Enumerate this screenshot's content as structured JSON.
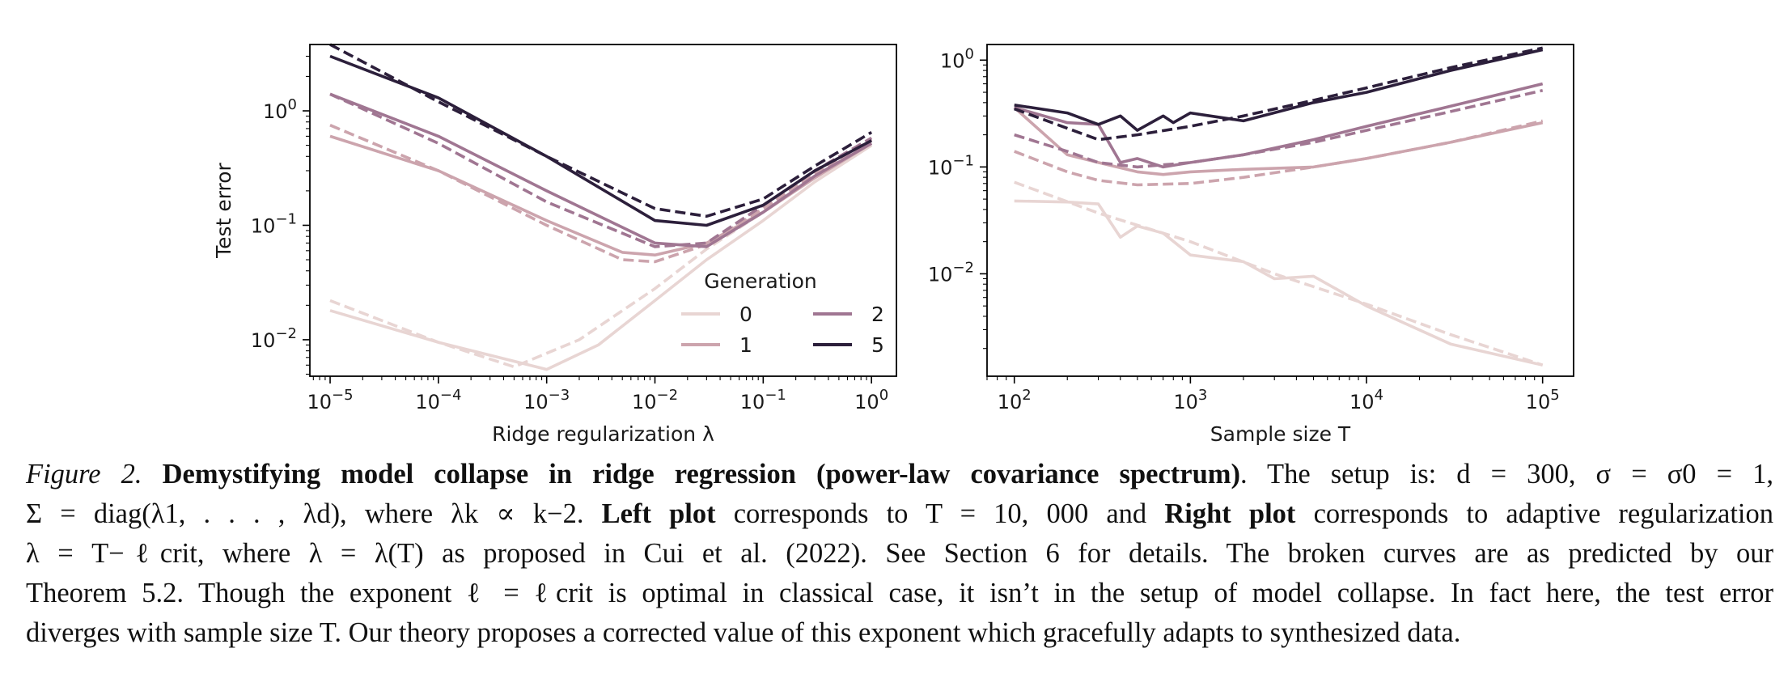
{
  "chart_data": [
    {
      "type": "line",
      "panel": "left",
      "xlabel": "Ridge regularization λ",
      "ylabel": "Test error",
      "xscale": "log",
      "yscale": "log",
      "xlim": [
        6.5e-06,
        1.7
      ],
      "ylim": [
        0.0048,
        3.8
      ],
      "xticks": [
        {
          "value": 1e-05,
          "base": "10",
          "exp": "−5"
        },
        {
          "value": 0.0001,
          "base": "10",
          "exp": "−4"
        },
        {
          "value": 0.001,
          "base": "10",
          "exp": "−3"
        },
        {
          "value": 0.01,
          "base": "10",
          "exp": "−2"
        },
        {
          "value": 0.1,
          "base": "10",
          "exp": "−1"
        },
        {
          "value": 1,
          "base": "10",
          "exp": "0"
        }
      ],
      "yticks": [
        {
          "value": 0.01,
          "base": "10",
          "exp": "−2"
        },
        {
          "value": 0.1,
          "base": "10",
          "exp": "−1"
        },
        {
          "value": 1,
          "base": "10",
          "exp": "0"
        }
      ],
      "series": [
        {
          "name": "0",
          "kind": "empirical",
          "x": [
            1e-05,
            0.0001,
            0.001,
            0.003,
            0.01,
            0.03,
            0.1,
            0.3,
            1
          ],
          "values": [
            0.018,
            0.0095,
            0.0055,
            0.009,
            0.022,
            0.05,
            0.11,
            0.24,
            0.5
          ]
        },
        {
          "name": "0",
          "kind": "theory",
          "x": [
            1e-05,
            0.0001,
            0.0005,
            0.002,
            0.01,
            0.03,
            0.1,
            0.3,
            1
          ],
          "values": [
            0.022,
            0.0095,
            0.0058,
            0.01,
            0.028,
            0.062,
            0.13,
            0.27,
            0.55
          ]
        },
        {
          "name": "1",
          "kind": "empirical",
          "x": [
            1e-05,
            0.0001,
            0.001,
            0.005,
            0.01,
            0.03,
            0.1,
            0.3,
            1
          ],
          "values": [
            0.6,
            0.3,
            0.11,
            0.058,
            0.055,
            0.07,
            0.13,
            0.26,
            0.52
          ]
        },
        {
          "name": "1",
          "kind": "theory",
          "x": [
            1e-05,
            0.0001,
            0.001,
            0.005,
            0.01,
            0.03,
            0.1,
            0.3,
            1
          ],
          "values": [
            0.75,
            0.3,
            0.1,
            0.05,
            0.048,
            0.068,
            0.14,
            0.28,
            0.56
          ]
        },
        {
          "name": "2",
          "kind": "empirical",
          "x": [
            1e-05,
            0.0001,
            0.001,
            0.01,
            0.03,
            0.1,
            0.3,
            1
          ],
          "values": [
            1.4,
            0.6,
            0.2,
            0.07,
            0.065,
            0.13,
            0.27,
            0.52
          ]
        },
        {
          "name": "2",
          "kind": "theory",
          "x": [
            1e-05,
            0.0001,
            0.001,
            0.01,
            0.03,
            0.1,
            0.3,
            1
          ],
          "values": [
            1.4,
            0.52,
            0.16,
            0.065,
            0.07,
            0.15,
            0.3,
            0.58
          ]
        },
        {
          "name": "5",
          "kind": "empirical",
          "x": [
            1e-05,
            0.0001,
            0.001,
            0.01,
            0.03,
            0.1,
            0.3,
            1
          ],
          "values": [
            3.0,
            1.3,
            0.4,
            0.11,
            0.1,
            0.15,
            0.3,
            0.55
          ]
        },
        {
          "name": "5",
          "kind": "theory",
          "x": [
            1e-05,
            0.0001,
            0.001,
            0.01,
            0.03,
            0.1,
            0.3,
            1
          ],
          "values": [
            3.8,
            1.2,
            0.4,
            0.14,
            0.12,
            0.17,
            0.33,
            0.65
          ]
        }
      ],
      "legend": {
        "title": "Generation",
        "location": "lower-right",
        "entries": [
          "0",
          "1",
          "2",
          "5"
        ]
      }
    },
    {
      "type": "line",
      "panel": "right",
      "xlabel": "Sample size T",
      "ylabel": "",
      "xscale": "log",
      "yscale": "log",
      "xlim": [
        70,
        150000
      ],
      "ylim": [
        0.0011,
        1.4
      ],
      "xticks": [
        {
          "value": 100,
          "base": "10",
          "exp": "2"
        },
        {
          "value": 1000,
          "base": "10",
          "exp": "3"
        },
        {
          "value": 10000,
          "base": "10",
          "exp": "4"
        },
        {
          "value": 100000,
          "base": "10",
          "exp": "5"
        }
      ],
      "yticks": [
        {
          "value": 0.01,
          "base": "10",
          "exp": "−2"
        },
        {
          "value": 0.1,
          "base": "10",
          "exp": "−1"
        },
        {
          "value": 1,
          "base": "10",
          "exp": "0"
        }
      ],
      "series": [
        {
          "name": "0",
          "kind": "empirical",
          "x": [
            100,
            200,
            300,
            400,
            500,
            700,
            1000,
            2000,
            3000,
            5000,
            10000,
            30000,
            100000
          ],
          "values": [
            0.048,
            0.047,
            0.045,
            0.022,
            0.028,
            0.024,
            0.015,
            0.013,
            0.009,
            0.0095,
            0.005,
            0.0022,
            0.0014
          ]
        },
        {
          "name": "0",
          "kind": "theory",
          "x": [
            100,
            300,
            1000,
            3000,
            10000,
            30000,
            100000
          ],
          "values": [
            0.072,
            0.037,
            0.02,
            0.01,
            0.0052,
            0.0027,
            0.0014
          ]
        },
        {
          "name": "1",
          "kind": "empirical",
          "x": [
            100,
            200,
            300,
            500,
            700,
            1000,
            2000,
            5000,
            10000,
            30000,
            100000
          ],
          "values": [
            0.36,
            0.13,
            0.11,
            0.09,
            0.085,
            0.09,
            0.095,
            0.1,
            0.12,
            0.17,
            0.26
          ]
        },
        {
          "name": "1",
          "kind": "theory",
          "x": [
            100,
            200,
            300,
            500,
            1000,
            2000,
            5000,
            10000,
            30000,
            100000
          ],
          "values": [
            0.14,
            0.09,
            0.075,
            0.068,
            0.07,
            0.08,
            0.1,
            0.12,
            0.17,
            0.27
          ]
        },
        {
          "name": "2",
          "kind": "empirical",
          "x": [
            100,
            200,
            300,
            400,
            500,
            700,
            1000,
            2000,
            5000,
            10000,
            30000,
            100000
          ],
          "values": [
            0.36,
            0.26,
            0.25,
            0.11,
            0.12,
            0.1,
            0.11,
            0.13,
            0.18,
            0.24,
            0.37,
            0.6
          ]
        },
        {
          "name": "2",
          "kind": "theory",
          "x": [
            100,
            200,
            300,
            500,
            1000,
            2000,
            5000,
            10000,
            30000,
            100000
          ],
          "values": [
            0.2,
            0.14,
            0.11,
            0.1,
            0.11,
            0.13,
            0.17,
            0.22,
            0.33,
            0.52
          ]
        },
        {
          "name": "5",
          "kind": "empirical",
          "x": [
            100,
            200,
            300,
            400,
            500,
            700,
            800,
            1000,
            2000,
            5000,
            10000,
            30000,
            100000
          ],
          "values": [
            0.38,
            0.32,
            0.25,
            0.3,
            0.22,
            0.3,
            0.26,
            0.32,
            0.27,
            0.4,
            0.5,
            0.8,
            1.25
          ]
        },
        {
          "name": "5",
          "kind": "theory",
          "x": [
            100,
            200,
            300,
            500,
            1000,
            2000,
            5000,
            10000,
            30000,
            100000
          ],
          "values": [
            0.35,
            0.23,
            0.18,
            0.2,
            0.24,
            0.3,
            0.42,
            0.55,
            0.85,
            1.3
          ]
        }
      ]
    }
  ],
  "palette": {
    "gen0": "#e8d5d3",
    "gen1": "#cca4ad",
    "gen2": "#a07692",
    "gen5": "#2c1f3b"
  },
  "caption": {
    "figure_label": "Figure 2.",
    "title": "Demystifying model collapse in ridge regression (power-law covariance spectrum)",
    "line1_tail": ". The setup is: d = 300, σ = σ0 = 1,",
    "line2_pre": "Σ = diag(λ1, . . . , λd), where λk ∝ k−2. ",
    "left_plot": "Left plot",
    "line2_mid": " corresponds to T = 10, 000 and ",
    "right_plot": "Right plot",
    "line2_tail": " corresponds to adaptive regularization",
    "line3": "λ = T−ℓcrit, where λ = λ(T) as proposed in Cui et al. (2022). See Section 6 for details. The broken curves are as predicted by our",
    "line4": "Theorem 5.2. Though the exponent ℓ = ℓcrit is optimal in classical case, it isn’t in the setup of model collapse. In fact here, the test error",
    "line5": "diverges with sample size T. Our theory proposes a corrected value of this exponent which gracefully adapts to synthesized data."
  }
}
